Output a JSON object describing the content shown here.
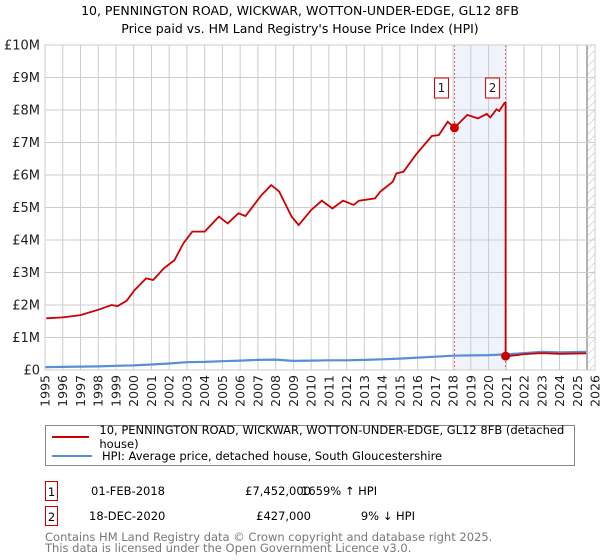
{
  "header": {
    "title": "10, PENNINGTON ROAD, WICKWAR, WOTTON-UNDER-EDGE, GL12 8FB",
    "subtitle": "Price paid vs. HM Land Registry's House Price Index (HPI)"
  },
  "chart_data": {
    "type": "line",
    "title": "10, PENNINGTON ROAD, WICKWAR, WOTTON-UNDER-EDGE, GL12 8FB",
    "xlim": [
      1995,
      2026
    ],
    "ylim": [
      0,
      10000000
    ],
    "y_ticks": [
      {
        "v": 0,
        "label": "£0"
      },
      {
        "v": 1000000,
        "label": "£1M"
      },
      {
        "v": 2000000,
        "label": "£2M"
      },
      {
        "v": 3000000,
        "label": "£3M"
      },
      {
        "v": 4000000,
        "label": "£4M"
      },
      {
        "v": 5000000,
        "label": "£5M"
      },
      {
        "v": 6000000,
        "label": "£6M"
      },
      {
        "v": 7000000,
        "label": "£7M"
      },
      {
        "v": 8000000,
        "label": "£8M"
      },
      {
        "v": 9000000,
        "label": "£9M"
      },
      {
        "v": 10000000,
        "label": "£10M"
      }
    ],
    "x_ticks": [
      "1995",
      "1996",
      "1997",
      "1998",
      "1999",
      "2000",
      "2001",
      "2002",
      "2003",
      "2004",
      "2005",
      "2006",
      "2007",
      "2008",
      "2009",
      "2010",
      "2011",
      "2012",
      "2013",
      "2014",
      "2015",
      "2016",
      "2017",
      "2018",
      "2019",
      "2020",
      "2021",
      "2022",
      "2023",
      "2024",
      "2025",
      "2026"
    ],
    "grid": true,
    "shaded_range": [
      2018.08,
      2020.96
    ],
    "forecast_hatch_from": 2025.55,
    "series": [
      {
        "name": "10, PENNINGTON ROAD, WICKWAR, WOTTON-UNDER-EDGE, GL12 8FB (detached house)",
        "color": "#cc0000",
        "x": [
          1995.07,
          1996,
          1997,
          1998.1,
          1998.75,
          1999.1,
          1999.6,
          2000.05,
          2000.7,
          2001.1,
          2001.7,
          2002.3,
          2002.8,
          2003.3,
          2004,
          2004.8,
          2005.3,
          2005.9,
          2006.3,
          2007.2,
          2007.75,
          2008.2,
          2008.9,
          2009.3,
          2010,
          2010.6,
          2011.2,
          2011.8,
          2012.4,
          2012.7,
          2013.6,
          2013.9,
          2014.6,
          2014.8,
          2015.2,
          2015.9,
          2016.8,
          2017.2,
          2017.7,
          2018.08,
          2018.8,
          2019.4,
          2019.9,
          2020.1,
          2020.45,
          2020.6,
          2020.9,
          2020.96,
          2020.96,
          2021.5,
          2022,
          2023,
          2024,
          2025.5
        ],
        "y": [
          1590000,
          1620000,
          1690000,
          1870000,
          2000000,
          1970000,
          2130000,
          2460000,
          2820000,
          2770000,
          3130000,
          3380000,
          3900000,
          4260000,
          4260000,
          4720000,
          4510000,
          4820000,
          4740000,
          5380000,
          5690000,
          5490000,
          4720000,
          4460000,
          4920000,
          5210000,
          4970000,
          5210000,
          5080000,
          5210000,
          5280000,
          5490000,
          5790000,
          6050000,
          6100000,
          6620000,
          7200000,
          7230000,
          7640000,
          7452000,
          7850000,
          7740000,
          7880000,
          7770000,
          8020000,
          7970000,
          8220000,
          8220000,
          427000,
          450000,
          490000,
          520000,
          500000,
          510000
        ]
      },
      {
        "name": "HPI: Average price, detached house, South Gloucestershire",
        "color": "#5b8fd4",
        "x": [
          1995,
          1998,
          1999,
          2000,
          2001,
          2002,
          2003,
          2004,
          2005,
          2006,
          2007,
          2008,
          2009,
          2010,
          2011,
          2012,
          2013,
          2014,
          2015,
          2016,
          2017,
          2018,
          2019,
          2020,
          2021,
          2022,
          2023,
          2024,
          2025.5
        ],
        "y": [
          90000,
          110000,
          130000,
          140000,
          170000,
          200000,
          240000,
          250000,
          270000,
          290000,
          310000,
          320000,
          280000,
          290000,
          300000,
          300000,
          310000,
          330000,
          350000,
          380000,
          410000,
          440000,
          450000,
          460000,
          480000,
          520000,
          560000,
          540000,
          560000
        ]
      }
    ],
    "sales": [
      {
        "label": "1",
        "x": 2018.08,
        "y": 7452000
      },
      {
        "label": "2",
        "x": 2020.96,
        "y": 427000
      }
    ]
  },
  "legend": {
    "items": [
      {
        "label": "10, PENNINGTON ROAD, WICKWAR, WOTTON-UNDER-EDGE, GL12 8FB (detached house)",
        "color": "#cc0000"
      },
      {
        "label": "HPI: Average price, detached house, South Gloucestershire",
        "color": "#5b8fd4"
      }
    ]
  },
  "sales_table": [
    {
      "num": "1",
      "date": "01-FEB-2018",
      "price": "£7,452,000",
      "hpi": "1659% ↑ HPI"
    },
    {
      "num": "2",
      "date": "18-DEC-2020",
      "price": "£427,000",
      "hpi": "9% ↓ HPI"
    }
  ],
  "footer": {
    "line1": "Contains HM Land Registry data © Crown copyright and database right 2025.",
    "line2": "This data is licensed under the Open Government Licence v3.0."
  }
}
